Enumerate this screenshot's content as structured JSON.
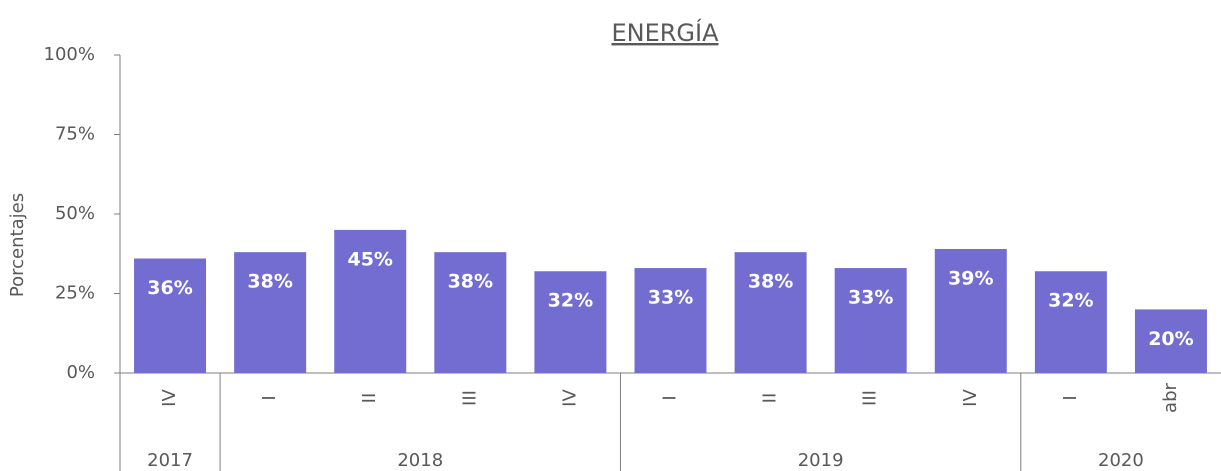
{
  "chart_data": {
    "type": "bar",
    "title": "ENERGÍA",
    "y_label": "Porcentajes",
    "groups": [
      {
        "label": "2017",
        "categories": [
          "IV"
        ]
      },
      {
        "label": "2018",
        "categories": [
          "I",
          "II",
          "III",
          "IV"
        ]
      },
      {
        "label": "2019",
        "categories": [
          "I",
          "II",
          "III",
          "IV"
        ]
      },
      {
        "label": "2020",
        "categories": [
          "I",
          "abr"
        ]
      }
    ],
    "values": [
      36,
      38,
      45,
      38,
      32,
      33,
      38,
      33,
      39,
      32,
      20
    ],
    "value_labels": [
      "36%",
      "38%",
      "45%",
      "38%",
      "32%",
      "33%",
      "38%",
      "33%",
      "39%",
      "32%",
      "20%"
    ],
    "color": "#736dd1",
    "ylim": [
      0,
      100
    ],
    "yticks": [
      {
        "value": 0,
        "label": "0%"
      },
      {
        "value": 25,
        "label": "25%"
      },
      {
        "value": 50,
        "label": "50%"
      },
      {
        "value": 75,
        "label": "75%"
      },
      {
        "value": 100,
        "label": "100%"
      }
    ]
  }
}
